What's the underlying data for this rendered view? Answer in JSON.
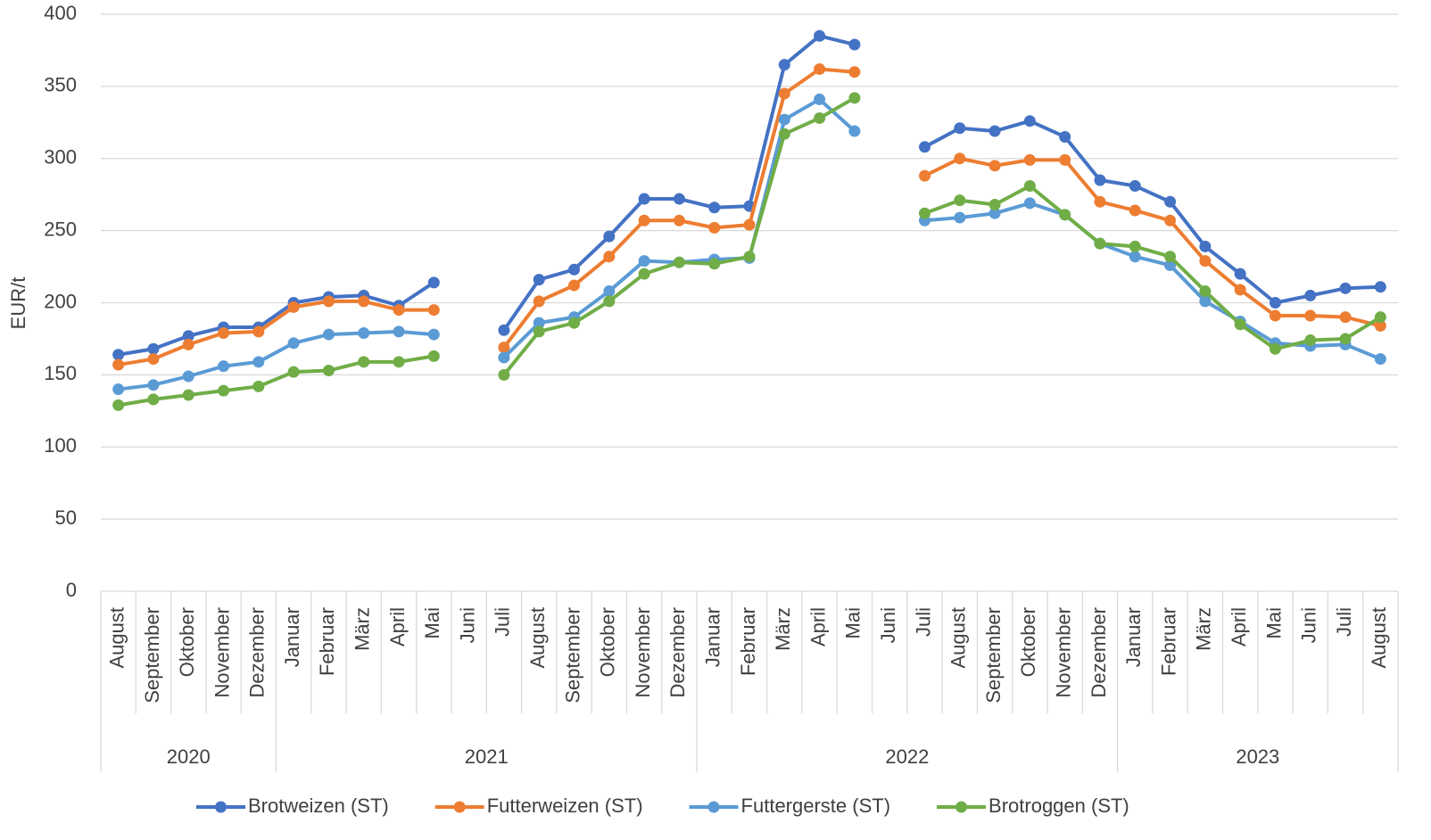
{
  "chart_data": {
    "type": "line",
    "y_label": "EUR/t",
    "ylim": [
      0,
      400
    ],
    "yticks": [
      0,
      50,
      100,
      150,
      200,
      250,
      300,
      350,
      400
    ],
    "grid": true,
    "legend": "bottom",
    "groups": [
      {
        "label": "2020",
        "categories": [
          "August",
          "September",
          "Oktober",
          "November",
          "Dezember"
        ]
      },
      {
        "label": "2021",
        "categories": [
          "Januar",
          "Februar",
          "März",
          "April",
          "Mai",
          "Juni",
          "Juli",
          "August",
          "September",
          "Oktober",
          "November",
          "Dezember"
        ]
      },
      {
        "label": "2022",
        "categories": [
          "Januar",
          "Februar",
          "März",
          "April",
          "Mai",
          "Juni",
          "Juli",
          "August",
          "September",
          "Oktober",
          "November",
          "Dezember"
        ]
      },
      {
        "label": "2023",
        "categories": [
          "Januar",
          "Februar",
          "März",
          "April",
          "Mai",
          "Juni",
          "Juli",
          "August"
        ]
      }
    ],
    "series": [
      {
        "name": "Brotweizen (ST)",
        "color": "#4472c4",
        "values": [
          164,
          168,
          177,
          183,
          183,
          200,
          204,
          205,
          198,
          214,
          null,
          181,
          216,
          223,
          246,
          272,
          272,
          266,
          267,
          365,
          385,
          379,
          null,
          308,
          321,
          319,
          326,
          315,
          285,
          281,
          270,
          239,
          220,
          200,
          205,
          210,
          211
        ]
      },
      {
        "name": "Futterweizen (ST)",
        "color": "#ed7d31",
        "values": [
          157,
          161,
          171,
          179,
          180,
          197,
          201,
          201,
          195,
          195,
          null,
          169,
          201,
          212,
          232,
          257,
          257,
          252,
          254,
          345,
          362,
          360,
          null,
          288,
          300,
          295,
          299,
          299,
          270,
          264,
          257,
          229,
          209,
          191,
          191,
          190,
          184
        ]
      },
      {
        "name": "Futtergerste (ST)",
        "color": "#5b9bd5",
        "values": [
          140,
          143,
          149,
          156,
          159,
          172,
          178,
          179,
          180,
          178,
          null,
          162,
          186,
          190,
          208,
          229,
          228,
          230,
          231,
          327,
          341,
          319,
          null,
          257,
          259,
          262,
          269,
          261,
          241,
          232,
          226,
          201,
          187,
          172,
          170,
          171,
          161
        ]
      },
      {
        "name": "Brotroggen (ST)",
        "color": "#70ad47",
        "values": [
          129,
          133,
          136,
          139,
          142,
          152,
          153,
          159,
          159,
          163,
          null,
          150,
          180,
          186,
          201,
          220,
          228,
          227,
          232,
          317,
          328,
          342,
          null,
          262,
          271,
          268,
          281,
          261,
          241,
          239,
          232,
          208,
          185,
          168,
          174,
          175,
          190
        ]
      }
    ]
  }
}
